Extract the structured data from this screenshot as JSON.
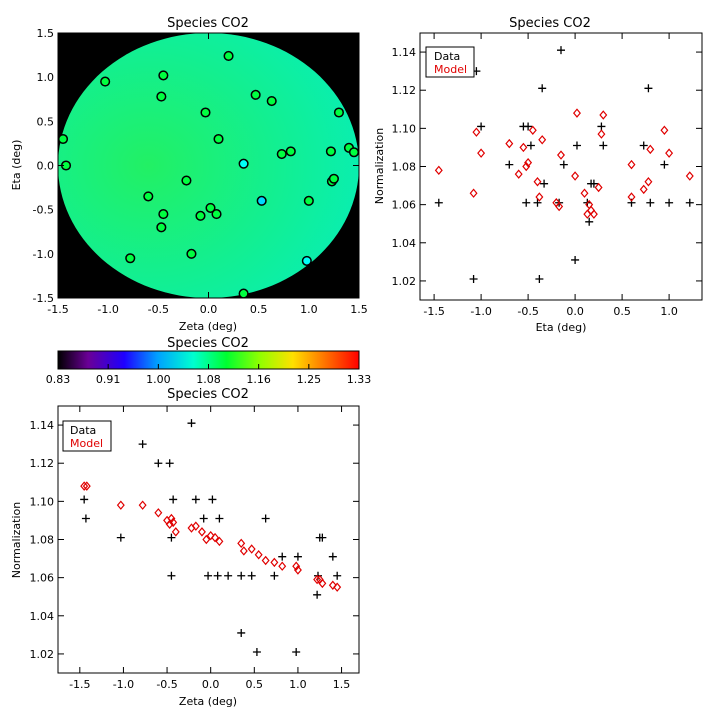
{
  "panels": {
    "map": {
      "title": "Species CO2",
      "xlabel": "Zeta (deg)",
      "ylabel": "Eta (deg)",
      "xlim": [
        -1.5,
        1.5
      ],
      "ylim": [
        -1.5,
        1.5
      ],
      "xticks": [
        "-1.5",
        "-1.0",
        "-0.5",
        "0.0",
        "0.5",
        "1.0",
        "1.5"
      ],
      "yticks": [
        "-1.5",
        "-1.0",
        "-0.5",
        "0.0",
        "0.5",
        "1.0",
        "1.5"
      ]
    },
    "colorbar": {
      "title": "Species CO2",
      "ticks": [
        "0.83",
        "0.91",
        "1.00",
        "1.08",
        "1.16",
        "1.25",
        "1.33"
      ]
    },
    "eta_plot": {
      "title": "Species CO2",
      "xlabel": "Eta (deg)",
      "ylabel": "Normalization",
      "xticks": [
        "-1.5",
        "-1.0",
        "-0.5",
        "0.0",
        "0.5",
        "1.0"
      ],
      "yticks": [
        "1.02",
        "1.04",
        "1.06",
        "1.08",
        "1.10",
        "1.12",
        "1.14"
      ],
      "legend": {
        "data": "Data",
        "model": "Model"
      }
    },
    "zeta_plot": {
      "title": "Species CO2",
      "xlabel": "Zeta (deg)",
      "ylabel": "Normalization",
      "xticks": [
        "-1.5",
        "-1.0",
        "-0.5",
        "0.0",
        "0.5",
        "1.0",
        "1.5"
      ],
      "yticks": [
        "1.02",
        "1.04",
        "1.06",
        "1.08",
        "1.10",
        "1.12",
        "1.14"
      ],
      "legend": {
        "data": "Data",
        "model": "Model"
      }
    }
  },
  "colors": {
    "data": "#000000",
    "model": "#e00000",
    "map_background": "#000000"
  },
  "chart_data": [
    {
      "type": "heatmap",
      "xlim": [
        -1.5,
        1.5
      ],
      "ylim": [
        -1.5,
        1.5
      ],
      "colorbar_range": [
        0.83,
        1.33
      ],
      "points": [
        {
          "x": -1.45,
          "y": 0.3,
          "v": 1.08
        },
        {
          "x": -1.42,
          "y": 0.0,
          "v": 1.08
        },
        {
          "x": -1.03,
          "y": 0.95,
          "v": 1.08
        },
        {
          "x": -0.78,
          "y": -1.05,
          "v": 1.08
        },
        {
          "x": -0.6,
          "y": -0.35,
          "v": 1.08
        },
        {
          "x": -0.45,
          "y": 1.02,
          "v": 1.08
        },
        {
          "x": -0.47,
          "y": 0.78,
          "v": 1.08
        },
        {
          "x": -0.45,
          "y": -0.55,
          "v": 1.08
        },
        {
          "x": -0.47,
          "y": -0.7,
          "v": 1.08
        },
        {
          "x": -0.22,
          "y": -0.17,
          "v": 1.08
        },
        {
          "x": -0.17,
          "y": -1.0,
          "v": 1.08
        },
        {
          "x": -0.08,
          "y": -0.57,
          "v": 1.08
        },
        {
          "x": -0.03,
          "y": 0.6,
          "v": 1.08
        },
        {
          "x": 0.02,
          "y": -0.48,
          "v": 1.08
        },
        {
          "x": 0.08,
          "y": -0.55,
          "v": 1.08
        },
        {
          "x": 0.1,
          "y": 0.3,
          "v": 1.08
        },
        {
          "x": 0.2,
          "y": 1.24,
          "v": 1.08
        },
        {
          "x": 0.35,
          "y": 0.02,
          "v": 1.0
        },
        {
          "x": 0.35,
          "y": -1.45,
          "v": 1.08
        },
        {
          "x": 0.47,
          "y": 0.8,
          "v": 1.08
        },
        {
          "x": 0.53,
          "y": -0.4,
          "v": 0.98
        },
        {
          "x": 0.63,
          "y": 0.73,
          "v": 1.08
        },
        {
          "x": 0.73,
          "y": 0.13,
          "v": 1.08
        },
        {
          "x": 0.82,
          "y": 0.16,
          "v": 1.08
        },
        {
          "x": 0.98,
          "y": -1.08,
          "v": 1.0
        },
        {
          "x": 1.0,
          "y": -0.4,
          "v": 1.08
        },
        {
          "x": 1.22,
          "y": 0.16,
          "v": 1.08
        },
        {
          "x": 1.23,
          "y": -0.18,
          "v": 1.08
        },
        {
          "x": 1.25,
          "y": -0.15,
          "v": 1.08
        },
        {
          "x": 1.3,
          "y": 0.6,
          "v": 1.08
        },
        {
          "x": 1.4,
          "y": 0.2,
          "v": 1.08
        },
        {
          "x": 1.45,
          "y": 0.15,
          "v": 1.08
        }
      ]
    },
    {
      "type": "scatter",
      "xlabel": "Eta (deg)",
      "ylabel": "Normalization",
      "xlim": [
        -1.65,
        1.35
      ],
      "ylim": [
        1.01,
        1.15
      ],
      "series": [
        {
          "name": "Data",
          "marker": "plus",
          "points": [
            [
              -1.45,
              1.061
            ],
            [
              -1.08,
              1.021
            ],
            [
              -1.05,
              1.13
            ],
            [
              -1.0,
              1.101
            ],
            [
              -0.7,
              1.081
            ],
            [
              -0.55,
              1.101
            ],
            [
              -0.52,
              1.061
            ],
            [
              -0.5,
              1.101
            ],
            [
              -0.47,
              1.091
            ],
            [
              -0.4,
              1.061
            ],
            [
              -0.38,
              1.021
            ],
            [
              -0.35,
              1.121
            ],
            [
              -0.33,
              1.071
            ],
            [
              -0.17,
              1.061
            ],
            [
              -0.15,
              1.141
            ],
            [
              -0.12,
              1.081
            ],
            [
              0.0,
              1.031
            ],
            [
              0.02,
              1.091
            ],
            [
              0.13,
              1.061
            ],
            [
              0.15,
              1.051
            ],
            [
              0.17,
              1.071
            ],
            [
              0.2,
              1.071
            ],
            [
              0.28,
              1.101
            ],
            [
              0.3,
              1.091
            ],
            [
              0.6,
              1.061
            ],
            [
              0.73,
              1.091
            ],
            [
              0.78,
              1.121
            ],
            [
              0.8,
              1.061
            ],
            [
              0.95,
              1.081
            ],
            [
              1.0,
              1.061
            ],
            [
              1.22,
              1.061
            ]
          ]
        },
        {
          "name": "Model",
          "marker": "diamond",
          "points": [
            [
              -1.45,
              1.078
            ],
            [
              -1.08,
              1.066
            ],
            [
              -1.05,
              1.098
            ],
            [
              -1.0,
              1.087
            ],
            [
              -0.7,
              1.092
            ],
            [
              -0.6,
              1.076
            ],
            [
              -0.55,
              1.09
            ],
            [
              -0.52,
              1.08
            ],
            [
              -0.5,
              1.082
            ],
            [
              -0.45,
              1.099
            ],
            [
              -0.4,
              1.072
            ],
            [
              -0.38,
              1.064
            ],
            [
              -0.35,
              1.094
            ],
            [
              -0.2,
              1.061
            ],
            [
              -0.17,
              1.059
            ],
            [
              -0.15,
              1.086
            ],
            [
              0.0,
              1.075
            ],
            [
              0.02,
              1.108
            ],
            [
              0.1,
              1.066
            ],
            [
              0.13,
              1.055
            ],
            [
              0.15,
              1.06
            ],
            [
              0.17,
              1.057
            ],
            [
              0.2,
              1.055
            ],
            [
              0.25,
              1.069
            ],
            [
              0.28,
              1.097
            ],
            [
              0.3,
              1.107
            ],
            [
              0.6,
              1.081
            ],
            [
              0.6,
              1.064
            ],
            [
              0.73,
              1.068
            ],
            [
              0.78,
              1.072
            ],
            [
              0.8,
              1.089
            ],
            [
              0.95,
              1.099
            ],
            [
              1.0,
              1.087
            ],
            [
              1.22,
              1.075
            ]
          ]
        }
      ]
    },
    {
      "type": "scatter",
      "xlabel": "Zeta (deg)",
      "ylabel": "Normalization",
      "xlim": [
        -1.75,
        1.7
      ],
      "ylim": [
        1.01,
        1.15
      ],
      "series": [
        {
          "name": "Data",
          "marker": "plus",
          "points": [
            [
              -1.45,
              1.101
            ],
            [
              -1.43,
              1.091
            ],
            [
              -1.03,
              1.081
            ],
            [
              -0.78,
              1.13
            ],
            [
              -0.6,
              1.12
            ],
            [
              -0.47,
              1.12
            ],
            [
              -0.45,
              1.081
            ],
            [
              -0.45,
              1.061
            ],
            [
              -0.43,
              1.101
            ],
            [
              -0.22,
              1.141
            ],
            [
              -0.17,
              1.101
            ],
            [
              -0.08,
              1.091
            ],
            [
              -0.03,
              1.061
            ],
            [
              0.02,
              1.101
            ],
            [
              0.08,
              1.061
            ],
            [
              0.1,
              1.091
            ],
            [
              0.2,
              1.061
            ],
            [
              0.35,
              1.031
            ],
            [
              0.35,
              1.061
            ],
            [
              0.47,
              1.061
            ],
            [
              0.53,
              1.021
            ],
            [
              0.63,
              1.091
            ],
            [
              0.73,
              1.061
            ],
            [
              0.82,
              1.071
            ],
            [
              0.98,
              1.021
            ],
            [
              1.0,
              1.071
            ],
            [
              1.22,
              1.051
            ],
            [
              1.23,
              1.061
            ],
            [
              1.25,
              1.081
            ],
            [
              1.28,
              1.081
            ],
            [
              1.4,
              1.071
            ],
            [
              1.45,
              1.061
            ]
          ]
        },
        {
          "name": "Model",
          "marker": "diamond",
          "points": [
            [
              -1.45,
              1.108
            ],
            [
              -1.42,
              1.108
            ],
            [
              -1.03,
              1.098
            ],
            [
              -0.78,
              1.098
            ],
            [
              -0.6,
              1.094
            ],
            [
              -0.5,
              1.09
            ],
            [
              -0.47,
              1.088
            ],
            [
              -0.45,
              1.091
            ],
            [
              -0.43,
              1.089
            ],
            [
              -0.4,
              1.084
            ],
            [
              -0.22,
              1.086
            ],
            [
              -0.17,
              1.087
            ],
            [
              -0.1,
              1.084
            ],
            [
              -0.05,
              1.08
            ],
            [
              0.0,
              1.082
            ],
            [
              0.05,
              1.081
            ],
            [
              0.1,
              1.079
            ],
            [
              0.35,
              1.078
            ],
            [
              0.38,
              1.074
            ],
            [
              0.47,
              1.075
            ],
            [
              0.55,
              1.072
            ],
            [
              0.63,
              1.069
            ],
            [
              0.73,
              1.068
            ],
            [
              0.82,
              1.066
            ],
            [
              0.98,
              1.066
            ],
            [
              1.0,
              1.064
            ],
            [
              1.22,
              1.059
            ],
            [
              1.25,
              1.059
            ],
            [
              1.28,
              1.057
            ],
            [
              1.4,
              1.056
            ],
            [
              1.45,
              1.055
            ]
          ]
        }
      ]
    }
  ]
}
